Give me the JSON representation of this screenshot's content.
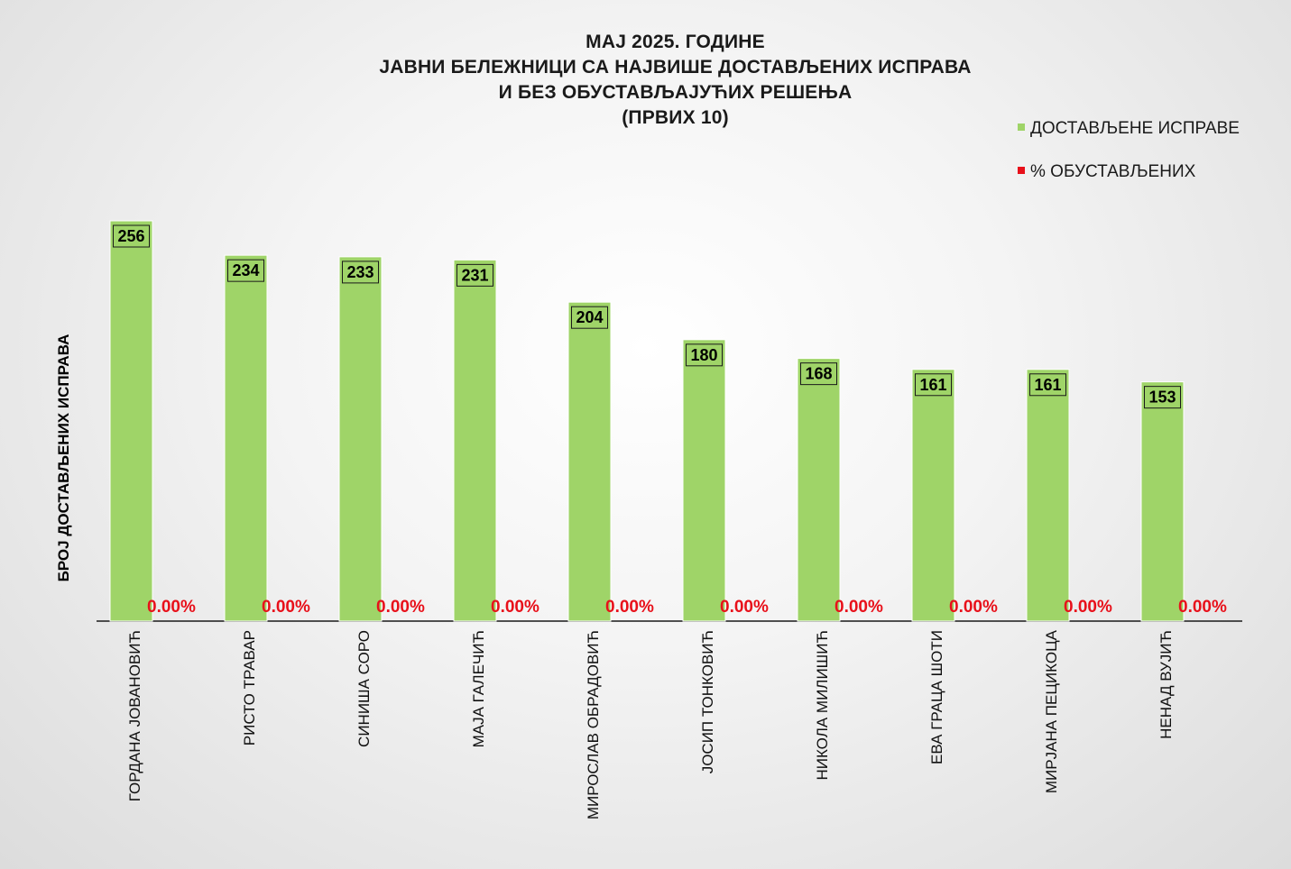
{
  "chart_data": {
    "type": "bar",
    "title_lines": [
      "МАЈ 2025. ГОДИНЕ",
      "ЈАВНИ БЕЛЕЖНИЦИ СА НАЈВИШЕ ДОСТАВЉЕНИХ ИСПРАВА",
      "И БЕЗ ОБУСТАВЉАЈУЋИХ РЕШЕЊА",
      "(ПРВИХ 10)"
    ],
    "ylabel": "БРОЈ ДОСТАВЉЕНИХ ИСПРАВА",
    "xlabel": "",
    "categories": [
      "ГОРДАНА ЈОВАНОВИЋ",
      "РИСТО ТРАВАР",
      "СИНИША СОРО",
      "МАЈА ГАЛЕЧИЋ",
      "МИРОСЛАВ ОБРАДОВИЋ",
      "ЈОСИП ТОНКОВИЋ",
      "НИКОЛА МИЛИШИЋ",
      "ЕВА ГРАЦА ШОТИ",
      "МИРЈАНА ПЕЦИКОЦА",
      "НЕНАД ВУЈИЋ"
    ],
    "series": [
      {
        "name": "ДОСТАВЉЕНЕ ИСПРАВЕ",
        "color": "#9fd468",
        "values": [
          256,
          234,
          233,
          231,
          204,
          180,
          168,
          161,
          161,
          153
        ],
        "labels": [
          "256",
          "234",
          "233",
          "231",
          "204",
          "180",
          "168",
          "161",
          "161",
          "153"
        ]
      },
      {
        "name": "% ОБУСТАВЉЕНИХ",
        "color": "#e8101a",
        "values": [
          0,
          0,
          0,
          0,
          0,
          0,
          0,
          0,
          0,
          0
        ],
        "labels": [
          "0.00%",
          "0.00%",
          "0.00%",
          "0.00%",
          "0.00%",
          "0.00%",
          "0.00%",
          "0.00%",
          "0.00%",
          "0.00%"
        ]
      }
    ],
    "ylim": [
      0,
      256
    ],
    "grid": false,
    "legend_position": "top-right"
  }
}
